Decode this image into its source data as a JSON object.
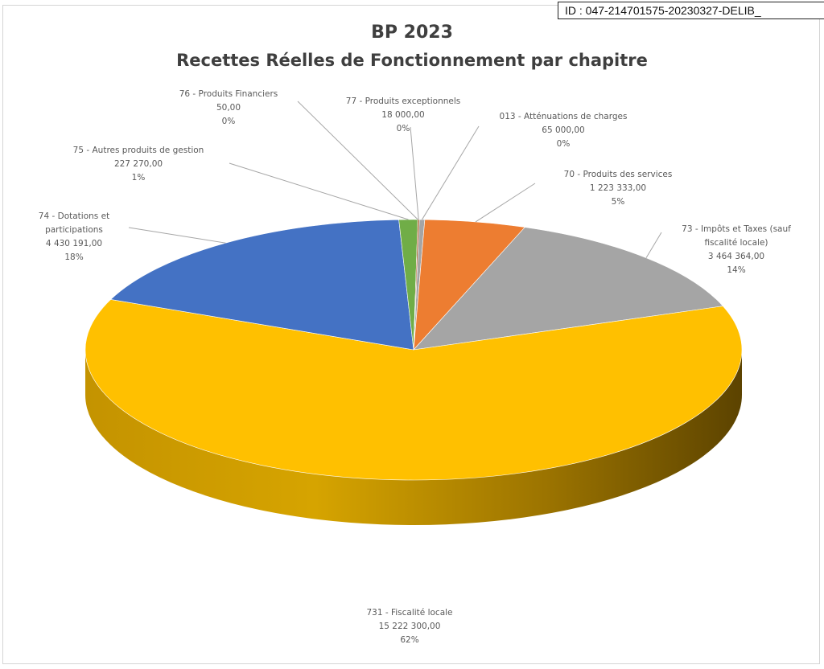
{
  "stamp": {
    "text": "ID : 047-214701575-20230327-DELIB_"
  },
  "chart_data": {
    "type": "pie",
    "title": "BP 2023",
    "subtitle": "Recettes Réelles de Fonctionnement par chapitre",
    "slices": [
      {
        "label": "013 - Atténuations de charges",
        "display_value": "65 000,00",
        "value": 65000,
        "percent": "0%",
        "color": "#a5a5a5"
      },
      {
        "label": "70 - Produits des services",
        "display_value": "1 223 333,00",
        "value": 1223333,
        "percent": "5%",
        "color": "#ed7d31"
      },
      {
        "label": "73 - Impôts et Taxes (sauf fiscalité locale)",
        "label_lines": [
          "73 - Impôts et Taxes (sauf",
          "fiscalité locale)"
        ],
        "display_value": "3 464 364,00",
        "value": 3464364,
        "percent": "14%",
        "color": "#a5a5a5"
      },
      {
        "label": "731 - Fiscalité locale",
        "display_value": "15 222 300,00",
        "value": 15222300,
        "percent": "62%",
        "color": "#ffc000"
      },
      {
        "label": "74 - Dotations et participations",
        "label_lines": [
          "74 - Dotations et",
          "participations"
        ],
        "display_value": "4 430 191,00",
        "value": 4430191,
        "percent": "18%",
        "color": "#4472c4"
      },
      {
        "label": "75 - Autres produits de gestion",
        "display_value": "227 270,00",
        "value": 227270,
        "percent": "1%",
        "color": "#70ad47"
      },
      {
        "label": "76 - Produits Financiers",
        "display_value": "50,00",
        "value": 50,
        "percent": "0%",
        "color": "#255e91"
      },
      {
        "label": "77 - Produits exceptionnels",
        "display_value": "18 000,00",
        "value": 18000,
        "percent": "0%",
        "color": "#9e480e"
      }
    ]
  }
}
